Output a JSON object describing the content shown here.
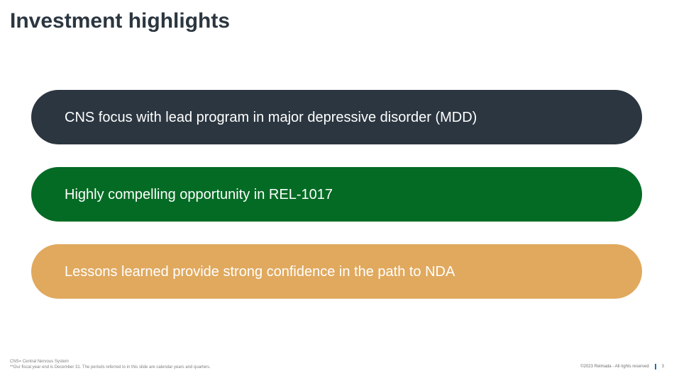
{
  "slide": {
    "title": "Investment highlights"
  },
  "highlights": [
    {
      "text": "CNS focus with lead program in major depressive disorder (MDD)",
      "color": "#2b3640"
    },
    {
      "text": "Highly compelling opportunity in REL-1017",
      "color": "#036b24"
    },
    {
      "text": "Lessons learned provide strong confidence in the path to NDA",
      "color": "#e0a95e"
    }
  ],
  "footnotes": {
    "line1": "CNS= Central Nervous System",
    "line2": "**Our fiscal year end is December 31. The periods referred to in this slide are calendar years and quarters."
  },
  "footer": {
    "copyright": "©2023 Relmada - All rights reserved",
    "page_number": "3"
  }
}
